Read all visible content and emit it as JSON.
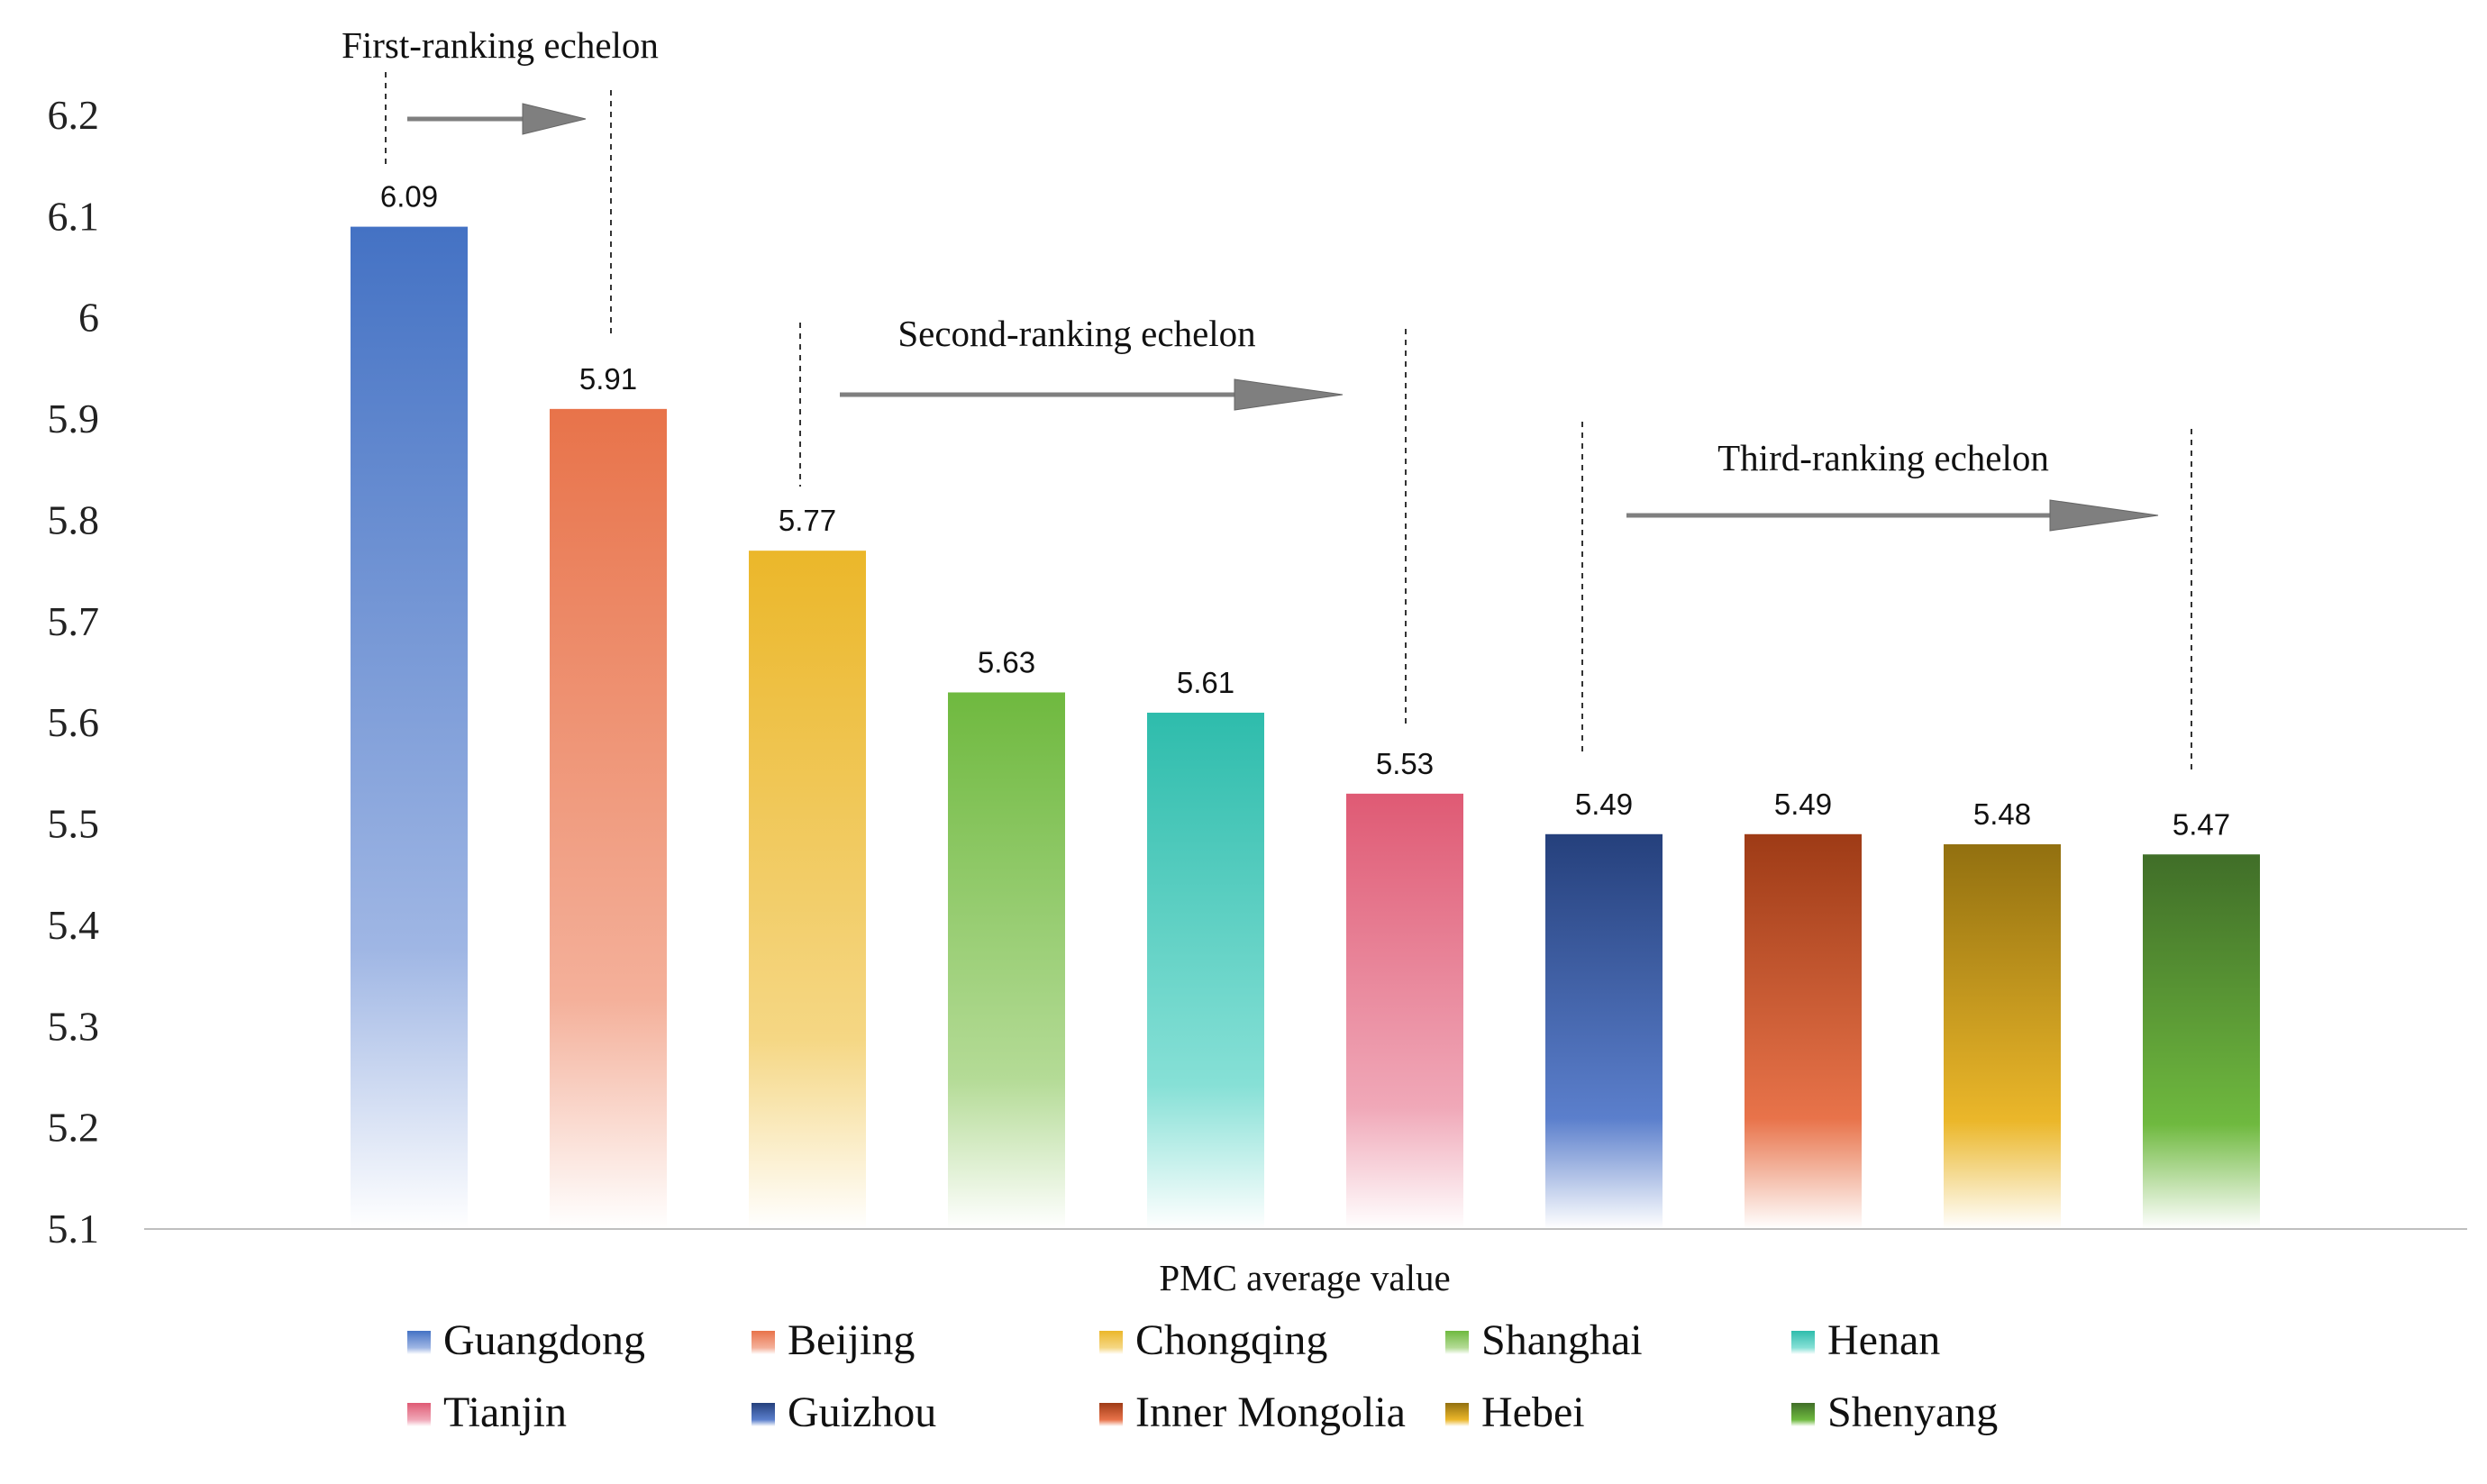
{
  "chart_data": {
    "type": "bar",
    "title": "",
    "xlabel": "PMC average value",
    "ylabel": "",
    "ylim": [
      5.1,
      6.2
    ],
    "yticks": [
      "5.1",
      "5.2",
      "5.3",
      "5.4",
      "5.5",
      "5.6",
      "5.7",
      "5.8",
      "5.9",
      "6",
      "6.1",
      "6.2"
    ],
    "grid": false,
    "legend_position": "bottom",
    "categories": [
      "Guangdong",
      "Beijing",
      "Chongqing",
      "Shanghai",
      "Henan",
      "Tianjin",
      "Guizhou",
      "Inner Mongolia",
      "Hebei",
      "Shenyang"
    ],
    "values": [
      6.09,
      5.91,
      5.77,
      5.63,
      5.61,
      5.53,
      5.49,
      5.49,
      5.48,
      5.47
    ],
    "data_labels": [
      "6.09",
      "5.91",
      "5.77",
      "5.63",
      "5.61",
      "5.53",
      "5.49",
      "5.49",
      "5.48",
      "5.47"
    ],
    "colors": [
      {
        "top": "#4472c4",
        "bottom": "#9fb6e4"
      },
      {
        "top": "#e8734a",
        "bottom": "#f4b09a"
      },
      {
        "top": "#ebb72a",
        "bottom": "#f5d784"
      },
      {
        "top": "#6fb93f",
        "bottom": "#b4db96"
      },
      {
        "top": "#2ebcac",
        "bottom": "#86e0d6"
      },
      {
        "top": "#df5a74",
        "bottom": "#f0a8b8"
      },
      {
        "top": "#25407c",
        "bottom": "#5b7fcc"
      },
      {
        "top": "#9e3b16",
        "bottom": "#e8734a"
      },
      {
        "top": "#927010",
        "bottom": "#ebb72a"
      },
      {
        "top": "#406e28",
        "bottom": "#6fb93f"
      }
    ],
    "annotations": [
      {
        "text": "First-ranking echelon",
        "from_bar": 0,
        "to_bar": 1
      },
      {
        "text": "Second-ranking echelon",
        "from_bar": 2,
        "to_bar": 5
      },
      {
        "text": "Third-ranking echelon",
        "from_bar": 6,
        "to_bar": 9
      }
    ]
  }
}
